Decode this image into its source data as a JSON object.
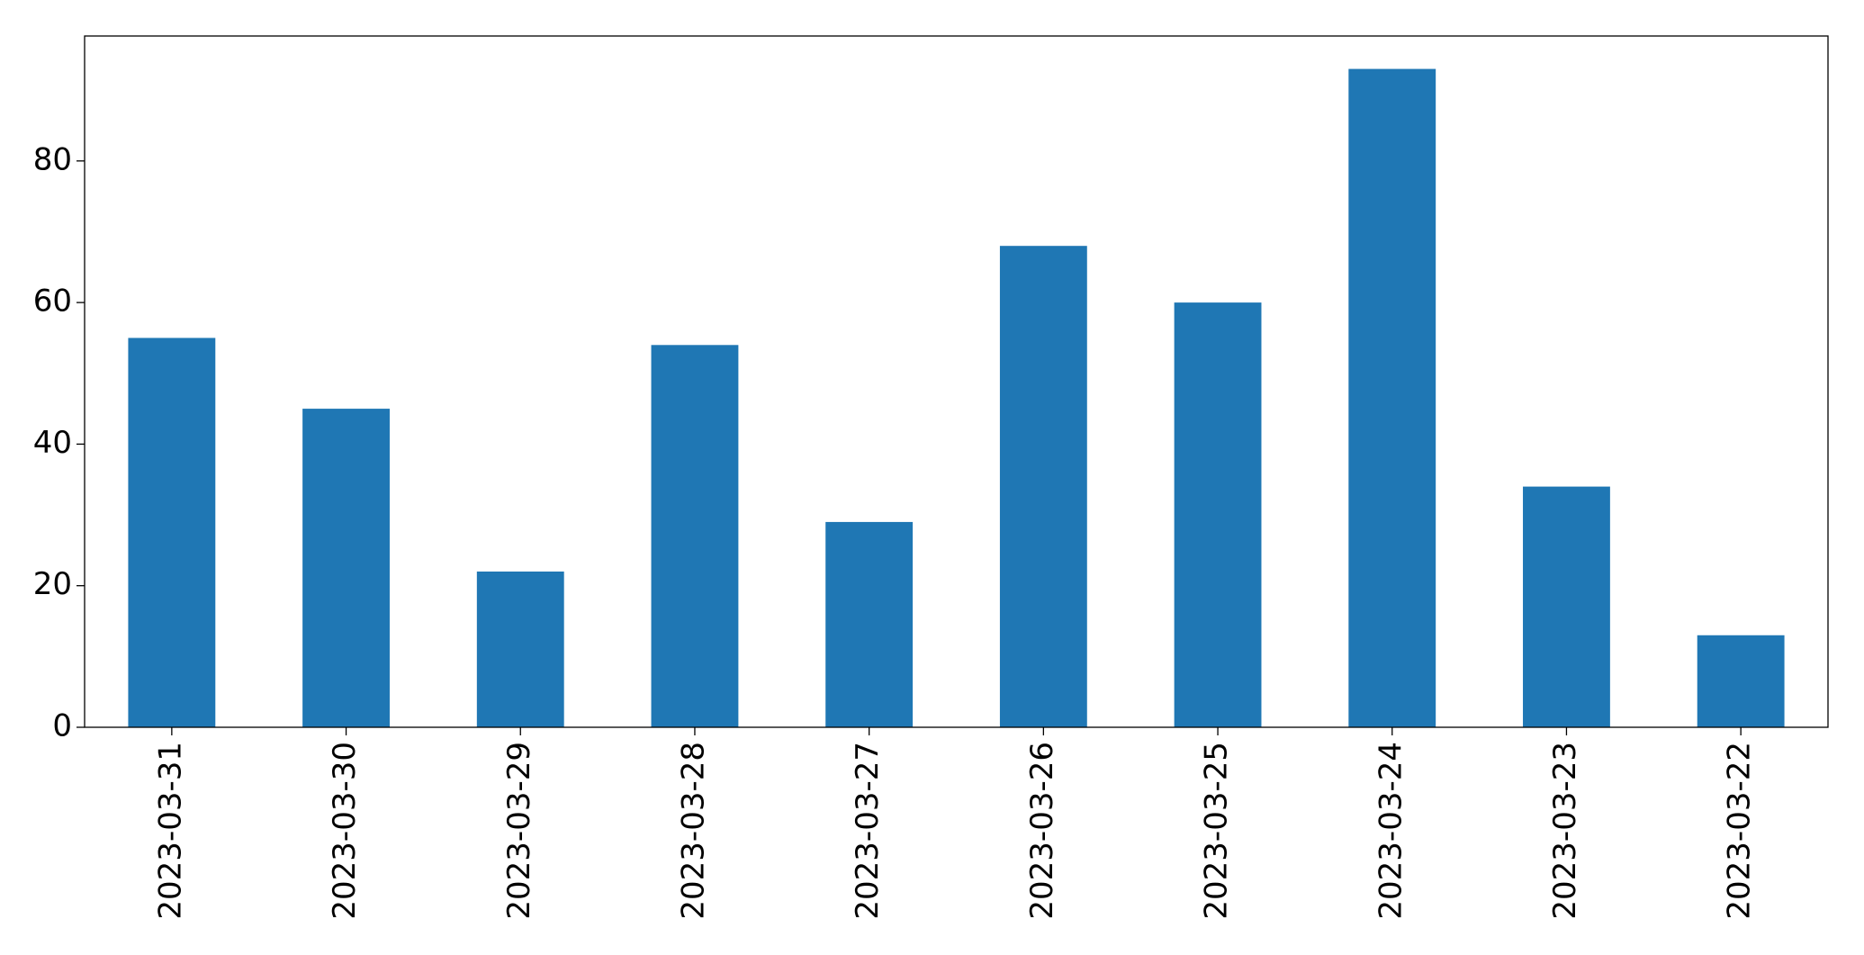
{
  "chart_data": {
    "type": "bar",
    "categories": [
      "2023-03-31",
      "2023-03-30",
      "2023-03-29",
      "2023-03-28",
      "2023-03-27",
      "2023-03-26",
      "2023-03-25",
      "2023-03-24",
      "2023-03-23",
      "2023-03-22"
    ],
    "values": [
      55,
      45,
      22,
      54,
      29,
      68,
      60,
      93,
      34,
      13
    ],
    "color": "#1f77b4",
    "ylim": [
      0,
      97.65
    ],
    "yticks": [
      0,
      20,
      40,
      60,
      80
    ],
    "grid": false
  }
}
